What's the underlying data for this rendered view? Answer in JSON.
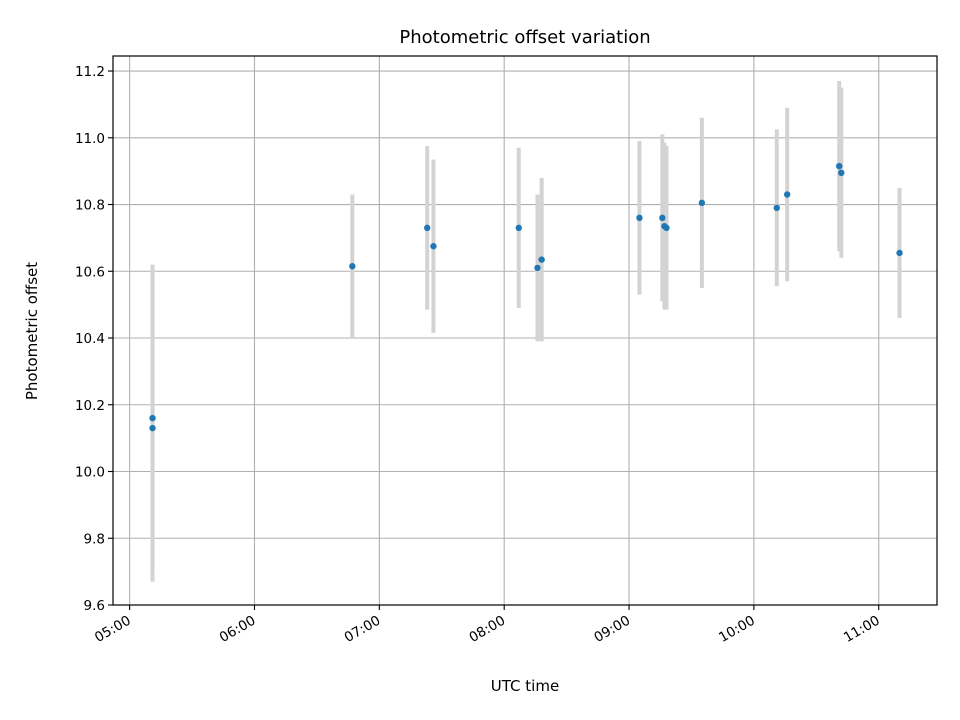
{
  "chart_data": {
    "type": "scatter",
    "title": "Photometric offset variation",
    "xlabel": "UTC time",
    "ylabel": "Photometric offset",
    "xlim": [
      "04:52",
      "11:28"
    ],
    "ylim": [
      9.6,
      11.245
    ],
    "x_ticks": [
      "05:00",
      "06:00",
      "07:00",
      "08:00",
      "09:00",
      "10:00",
      "11:00"
    ],
    "y_ticks": [
      "9.6",
      "9.8",
      "10.0",
      "10.2",
      "10.4",
      "10.6",
      "10.8",
      "11.0",
      "11.2"
    ],
    "grid": true,
    "marker_color": "#1f77b4",
    "errorbar_color": "#d3d3d3",
    "points": [
      {
        "x": "05:11",
        "y": 10.13,
        "yerr": 0.46
      },
      {
        "x": "05:11",
        "y": 10.16,
        "yerr": 0.46
      },
      {
        "x": "06:47",
        "y": 10.615,
        "yerr": 0.215
      },
      {
        "x": "07:23",
        "y": 10.73,
        "yerr": 0.245
      },
      {
        "x": "07:26",
        "y": 10.675,
        "yerr": 0.26
      },
      {
        "x": "08:07",
        "y": 10.73,
        "yerr": 0.24
      },
      {
        "x": "08:16",
        "y": 10.61,
        "yerr": 0.22
      },
      {
        "x": "08:18",
        "y": 10.635,
        "yerr": 0.245
      },
      {
        "x": "09:05",
        "y": 10.76,
        "yerr": 0.23
      },
      {
        "x": "09:16",
        "y": 10.76,
        "yerr": 0.25
      },
      {
        "x": "09:17",
        "y": 10.735,
        "yerr": 0.25
      },
      {
        "x": "09:18",
        "y": 10.73,
        "yerr": 0.245
      },
      {
        "x": "09:35",
        "y": 10.805,
        "yerr": 0.255
      },
      {
        "x": "10:11",
        "y": 10.79,
        "yerr": 0.235
      },
      {
        "x": "10:16",
        "y": 10.83,
        "yerr": 0.26
      },
      {
        "x": "10:41",
        "y": 10.915,
        "yerr": 0.255
      },
      {
        "x": "10:42",
        "y": 10.895,
        "yerr": 0.255
      },
      {
        "x": "11:10",
        "y": 10.655,
        "yerr": 0.195
      }
    ]
  }
}
